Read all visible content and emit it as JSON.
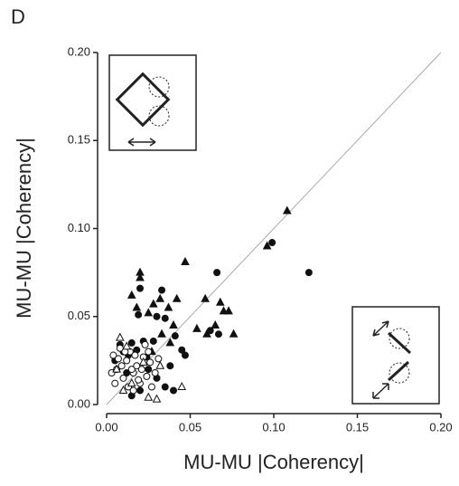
{
  "chart_data": {
    "type": "scatter",
    "panel_label": "D",
    "x_label": "MU-MU |Coherency|",
    "y_label": "MU-MU |Coherency|",
    "xlim": [
      0,
      0.2
    ],
    "ylim": [
      0,
      0.2
    ],
    "xticks": [
      {
        "value": 0,
        "label": "0.00"
      },
      {
        "value": 0.05,
        "label": "0.05"
      },
      {
        "value": 0.1,
        "label": "0.10"
      },
      {
        "value": 0.15,
        "label": "0.15"
      },
      {
        "value": 0.2,
        "label": "0.20"
      }
    ],
    "yticks": [
      {
        "value": 0,
        "label": "0.00"
      },
      {
        "value": 0.05,
        "label": "0.05"
      },
      {
        "value": 0.1,
        "label": "0.10"
      },
      {
        "value": 0.15,
        "label": "0.15"
      },
      {
        "value": 0.2,
        "label": "0.20"
      }
    ],
    "identity_line": true,
    "line_color": "#aaaaaa",
    "series": [
      {
        "marker": "circle",
        "filled": true,
        "color": "#111111",
        "x": [
          0.099,
          0.121,
          0.066,
          0.019,
          0.067,
          0.062,
          0.035,
          0.03,
          0.041,
          0.045,
          0.047,
          0.033,
          0.02,
          0.028,
          0.022,
          0.015,
          0.008,
          0.01,
          0.005,
          0.025,
          0.03,
          0.035,
          0.015,
          0.02,
          0.04,
          0.013,
          0.018,
          0.024,
          0.012,
          0.038
        ],
        "values": [
          0.092,
          0.075,
          0.075,
          0.051,
          0.04,
          0.042,
          0.049,
          0.05,
          0.039,
          0.031,
          0.028,
          0.065,
          0.066,
          0.036,
          0.036,
          0.035,
          0.034,
          0.03,
          0.025,
          0.02,
          0.015,
          0.01,
          0.005,
          0.008,
          0.008,
          0.028,
          0.031,
          0.027,
          0.018,
          0.022
        ]
      },
      {
        "marker": "triangle",
        "filled": true,
        "color": "#111111",
        "x": [
          0.108,
          0.096,
          0.047,
          0.02,
          0.02,
          0.015,
          0.032,
          0.042,
          0.059,
          0.068,
          0.07,
          0.073,
          0.054,
          0.065,
          0.076,
          0.06,
          0.037,
          0.028,
          0.025,
          0.018,
          0.04,
          0.033,
          0.038,
          0.027
        ],
        "values": [
          0.11,
          0.09,
          0.081,
          0.075,
          0.072,
          0.062,
          0.06,
          0.06,
          0.06,
          0.058,
          0.053,
          0.053,
          0.043,
          0.045,
          0.04,
          0.04,
          0.055,
          0.057,
          0.052,
          0.055,
          0.045,
          0.04,
          0.035,
          0.03
        ]
      },
      {
        "marker": "circle",
        "filled": false,
        "color": "#111111",
        "x": [
          0.004,
          0.006,
          0.008,
          0.01,
          0.012,
          0.014,
          0.016,
          0.018,
          0.02,
          0.022,
          0.024,
          0.026,
          0.005,
          0.009,
          0.013,
          0.017,
          0.021,
          0.025,
          0.029,
          0.007,
          0.011,
          0.015,
          0.019,
          0.023,
          0.031,
          0.003,
          0.016,
          0.027
        ],
        "values": [
          0.028,
          0.02,
          0.032,
          0.015,
          0.025,
          0.03,
          0.018,
          0.022,
          0.012,
          0.027,
          0.016,
          0.024,
          0.012,
          0.022,
          0.01,
          0.028,
          0.02,
          0.03,
          0.018,
          0.026,
          0.03,
          0.02,
          0.014,
          0.034,
          0.026,
          0.018,
          0.008,
          0.01
        ]
      },
      {
        "marker": "triangle",
        "filled": false,
        "color": "#111111",
        "x": [
          0.008,
          0.012,
          0.025,
          0.03,
          0.045,
          0.006,
          0.015,
          0.022,
          0.032,
          0.01
        ],
        "values": [
          0.038,
          0.033,
          0.004,
          0.003,
          0.01,
          0.02,
          0.012,
          0.024,
          0.022,
          0.008
        ]
      }
    ]
  }
}
